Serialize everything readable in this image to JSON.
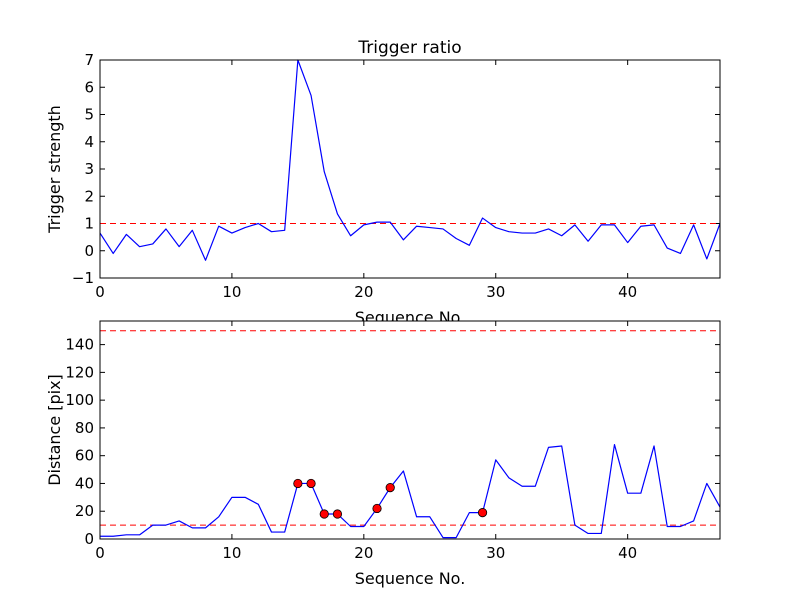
{
  "figure": {
    "title": "Trigger ratio"
  },
  "chart_data": [
    {
      "type": "line",
      "title": "Trigger ratio",
      "xlabel": "Sequence No.",
      "ylabel": "Trigger strength",
      "xlim": [
        0,
        47
      ],
      "ylim": [
        -1,
        7
      ],
      "xticks": [
        0,
        10,
        20,
        30,
        40
      ],
      "yticks": [
        -1,
        0,
        1,
        2,
        3,
        4,
        5,
        6,
        7
      ],
      "ytick_labels": [
        "−1",
        "0",
        "1",
        "2",
        "3",
        "4",
        "5",
        "6",
        "7"
      ],
      "grid": false,
      "series": [
        {
          "color": "#0000ff",
          "x": [
            0,
            1,
            2,
            3,
            4,
            5,
            6,
            7,
            8,
            9,
            10,
            11,
            12,
            13,
            14,
            15,
            16,
            17,
            18,
            19,
            20,
            21,
            22,
            23,
            24,
            25,
            26,
            27,
            28,
            29,
            30,
            31,
            32,
            33,
            34,
            35,
            36,
            37,
            38,
            39,
            40,
            41,
            42,
            43,
            44,
            45,
            46,
            47
          ],
          "values": [
            0.65,
            -0.1,
            0.6,
            0.15,
            0.25,
            0.8,
            0.15,
            0.75,
            -0.35,
            0.9,
            0.65,
            0.85,
            1.0,
            0.7,
            0.75,
            7.0,
            5.7,
            2.9,
            1.35,
            0.55,
            0.95,
            1.05,
            1.05,
            0.4,
            0.9,
            0.85,
            0.8,
            0.45,
            0.2,
            1.2,
            0.85,
            0.7,
            0.65,
            0.65,
            0.8,
            0.55,
            0.95,
            0.35,
            0.95,
            0.95,
            0.3,
            0.9,
            0.95,
            0.1,
            -0.1,
            0.95,
            -0.3,
            1.0
          ]
        }
      ],
      "reference_lines": [
        {
          "y": 1,
          "color": "#ff0000",
          "style": "dashed"
        }
      ]
    },
    {
      "type": "line",
      "xlabel": "Sequence No.",
      "ylabel": "Distance [pix]",
      "xlim": [
        0,
        47
      ],
      "ylim": [
        0,
        157
      ],
      "xticks": [
        0,
        10,
        20,
        30,
        40
      ],
      "yticks": [
        0,
        20,
        40,
        60,
        80,
        100,
        120,
        140
      ],
      "grid": false,
      "series": [
        {
          "color": "#0000ff",
          "x": [
            0,
            1,
            2,
            3,
            4,
            5,
            6,
            7,
            8,
            9,
            10,
            11,
            12,
            13,
            14,
            15,
            16,
            17,
            18,
            19,
            20,
            21,
            22,
            23,
            24,
            25,
            26,
            27,
            28,
            29,
            30,
            31,
            32,
            33,
            34,
            35,
            36,
            37,
            38,
            39,
            40,
            41,
            42,
            43,
            44,
            45,
            46,
            47
          ],
          "values": [
            2,
            2,
            3,
            3,
            10,
            10,
            13,
            8,
            8,
            16,
            30,
            30,
            25,
            5,
            5,
            40,
            40,
            18,
            18,
            9,
            9,
            22,
            37,
            49,
            16,
            16,
            1,
            1,
            19,
            19,
            57,
            44,
            38,
            38,
            66,
            67,
            10,
            4,
            4,
            68,
            33,
            33,
            67,
            9,
            9,
            13,
            40,
            23
          ]
        }
      ],
      "highlight_points": {
        "color": "#ff0000",
        "x": [
          15,
          16,
          17,
          18,
          21,
          22,
          29
        ],
        "values": [
          40,
          40,
          18,
          18,
          22,
          37,
          19
        ]
      },
      "reference_lines": [
        {
          "y": 10,
          "color": "#ff0000",
          "style": "dashed"
        },
        {
          "y": 150,
          "color": "#ff0000",
          "style": "dashed"
        }
      ]
    }
  ]
}
